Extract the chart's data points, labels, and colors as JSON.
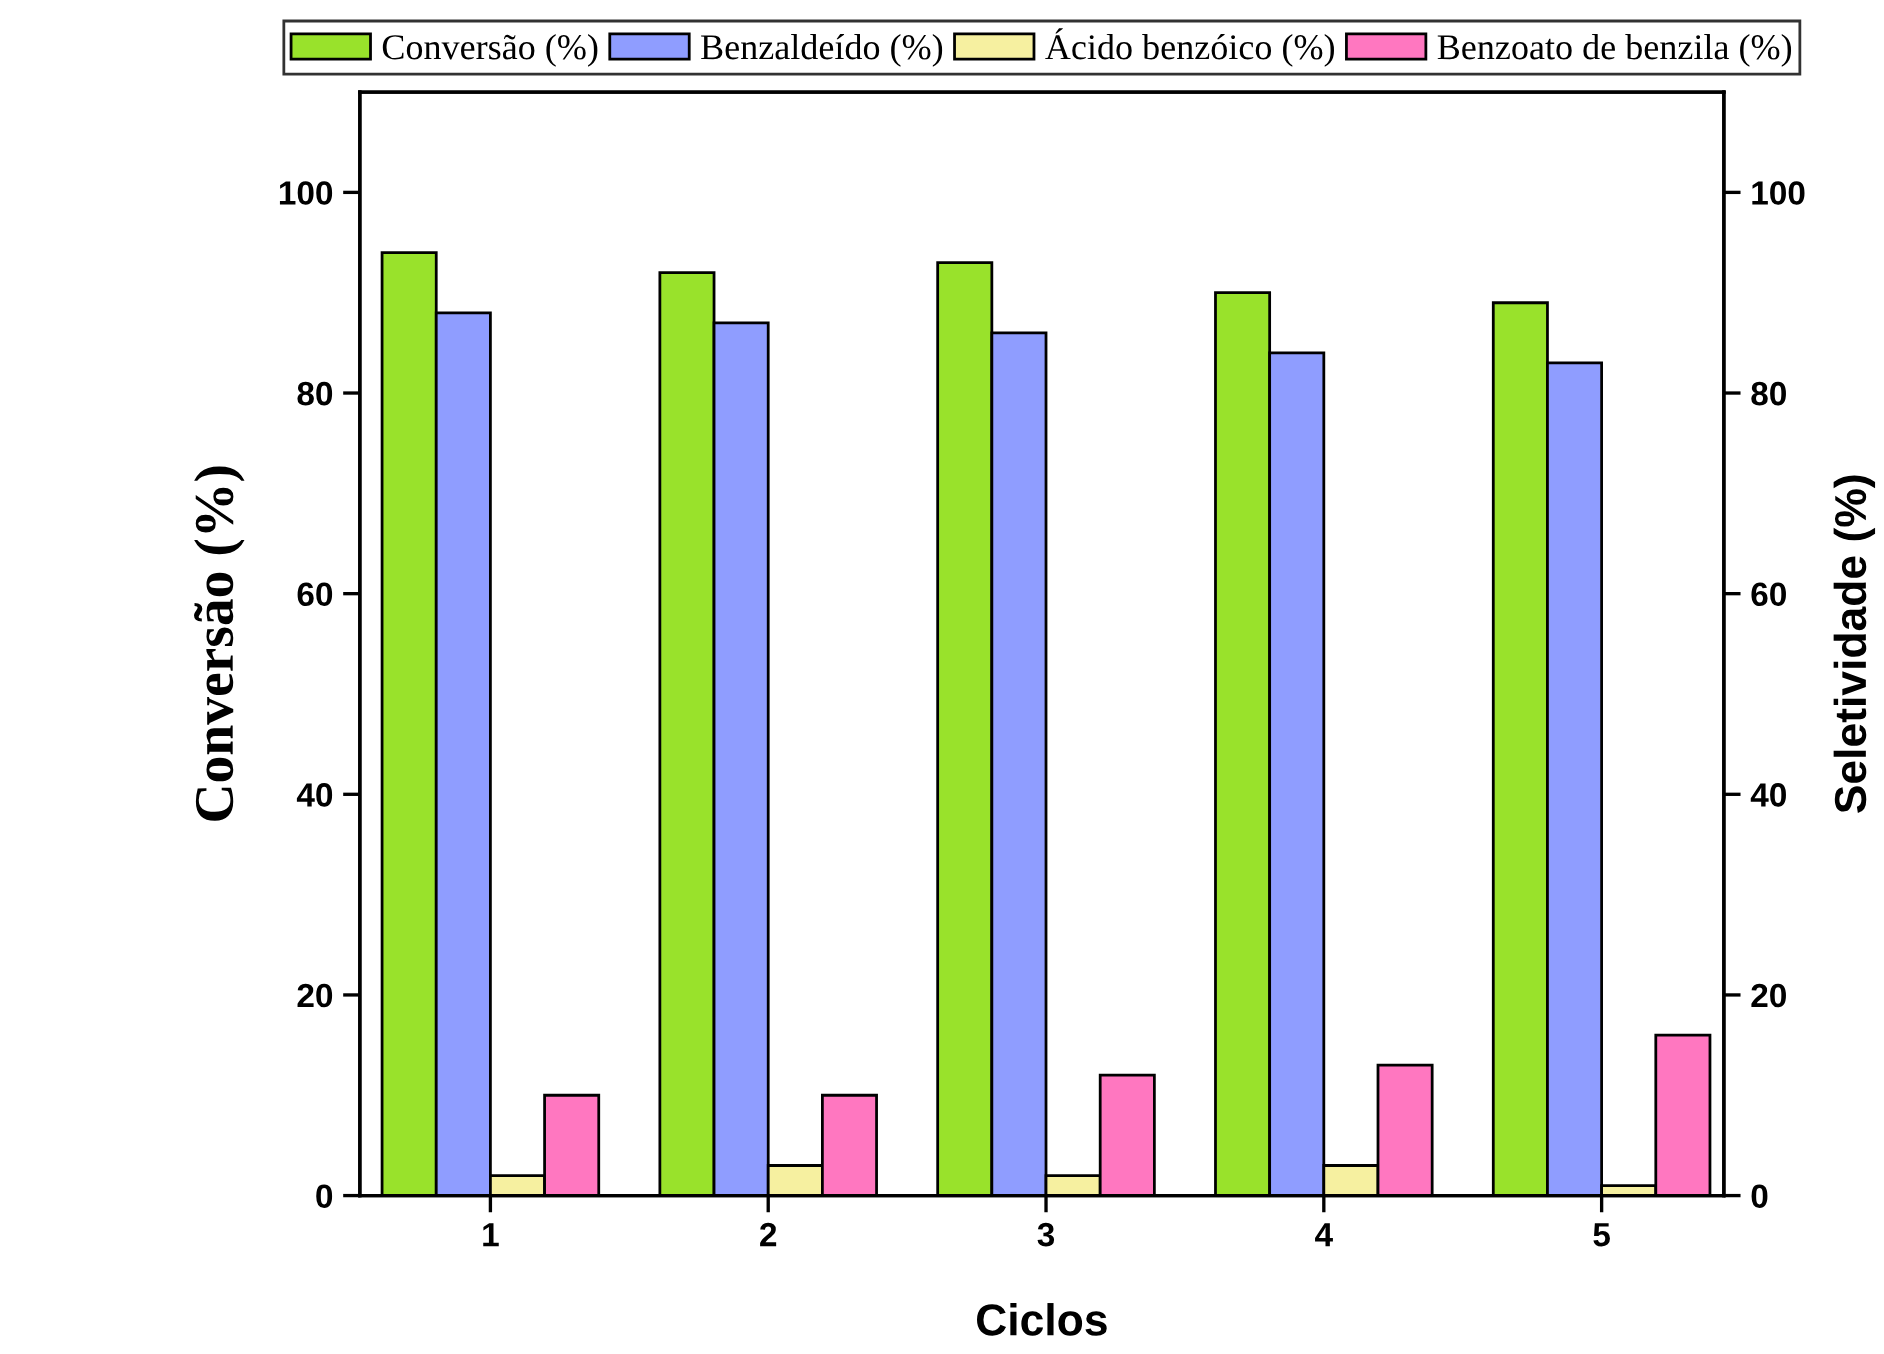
{
  "chart_data": {
    "type": "bar",
    "xlabel": "Ciclos",
    "ylabel": "Conversão (%)",
    "y2label": "Seletividade (%)",
    "categories": [
      "1",
      "2",
      "3",
      "4",
      "5"
    ],
    "series": [
      {
        "name": "Conversão (%)",
        "color": "#99e22b",
        "values": [
          94,
          92,
          93,
          90,
          89
        ]
      },
      {
        "name": "Benzaldeído (%)",
        "color": "#8f9dff",
        "values": [
          88,
          87,
          86,
          84,
          83
        ]
      },
      {
        "name": "Ácido benzóico (%)",
        "color": "#f6f0a0",
        "values": [
          2,
          3,
          2,
          3,
          1
        ]
      },
      {
        "name": "Benzoato de benzila (%)",
        "color": "#ff77c0",
        "values": [
          10,
          10,
          12,
          13,
          16
        ]
      }
    ],
    "ylim": [
      0,
      110
    ],
    "yticks": [
      0,
      20,
      40,
      60,
      80,
      100
    ],
    "y2lim": [
      0,
      110
    ],
    "y2ticks": [
      0,
      20,
      40,
      60,
      80,
      100
    ],
    "grid": false,
    "legend": "top"
  }
}
